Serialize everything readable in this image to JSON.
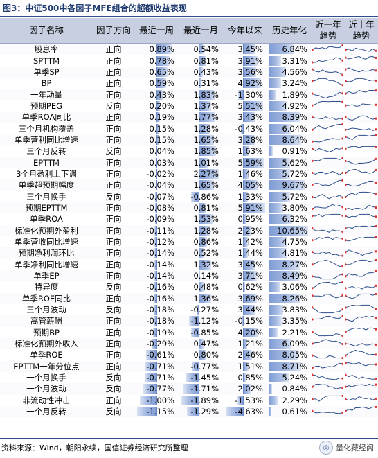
{
  "title": "图3：中证500中各因子MFE组合的超额收益表现",
  "headers": {
    "name": "因子名称",
    "direction": "因子方向",
    "week": "最近一周",
    "month": "最近一月",
    "ytd": "今年以来",
    "annual": "历史年化",
    "trend1y": "近一年\n趋势",
    "trend10y": "近十年\n趋势"
  },
  "rows": [
    {
      "name": "股息率",
      "dir": "正向",
      "week": "0.89%",
      "month": "0.54%",
      "ytd": "3.45%",
      "annual": "6.84%"
    },
    {
      "name": "SPTTM",
      "dir": "正向",
      "week": "0.78%",
      "month": "0.81%",
      "ytd": "3.91%",
      "annual": "3.31%"
    },
    {
      "name": "单季SP",
      "dir": "正向",
      "week": "0.65%",
      "month": "0.43%",
      "ytd": "3.56%",
      "annual": "4.56%"
    },
    {
      "name": "BP",
      "dir": "正向",
      "week": "0.59%",
      "month": "0.31%",
      "ytd": "4.92%",
      "annual": "3.24%"
    },
    {
      "name": "一年动量",
      "dir": "正向",
      "week": "0.43%",
      "month": "1.83%",
      "ytd": "-1.30%",
      "annual": "1.89%"
    },
    {
      "name": "预期PEG",
      "dir": "反向",
      "week": "0.20%",
      "month": "1.37%",
      "ytd": "5.51%",
      "annual": "4.92%"
    },
    {
      "name": "单季ROA同比",
      "dir": "正向",
      "week": "0.19%",
      "month": "1.77%",
      "ytd": "3.43%",
      "annual": "8.39%"
    },
    {
      "name": "三个月机构覆盖",
      "dir": "正向",
      "week": "0.15%",
      "month": "1.28%",
      "ytd": "-0.43%",
      "annual": "6.04%"
    },
    {
      "name": "单季营利同比增速",
      "dir": "正向",
      "week": "0.15%",
      "month": "1.65%",
      "ytd": "3.28%",
      "annual": "8.64%"
    },
    {
      "name": "三个月反转",
      "dir": "反向",
      "week": "0.04%",
      "month": "1.85%",
      "ytd": "1.63%",
      "annual": "0.91%"
    },
    {
      "name": "EPTTM",
      "dir": "正向",
      "week": "0.03%",
      "month": "1.01%",
      "ytd": "5.59%",
      "annual": "5.62%"
    },
    {
      "name": "3个月盈利上下调",
      "dir": "正向",
      "week": "-0.02%",
      "month": "2.27%",
      "ytd": "1.46%",
      "annual": "5.72%"
    },
    {
      "name": "单季超预期幅度",
      "dir": "正向",
      "week": "-0.04%",
      "month": "1.65%",
      "ytd": "4.05%",
      "annual": "9.67%"
    },
    {
      "name": "三个月换手",
      "dir": "反向",
      "week": "-0.07%",
      "month": "-0.86%",
      "ytd": "1.33%",
      "annual": "5.72%"
    },
    {
      "name": "预期EPTTM",
      "dir": "正向",
      "week": "-0.08%",
      "month": "0.81%",
      "ytd": "5.91%",
      "annual": "3.80%"
    },
    {
      "name": "单季ROA",
      "dir": "正向",
      "week": "-0.09%",
      "month": "1.53%",
      "ytd": "0.95%",
      "annual": "6.32%"
    },
    {
      "name": "标准化预期外盈利",
      "dir": "正向",
      "week": "-0.11%",
      "month": "1.28%",
      "ytd": "2.23%",
      "annual": "10.65%"
    },
    {
      "name": "单季营收同比增速",
      "dir": "正向",
      "week": "-0.12%",
      "month": "0.86%",
      "ytd": "1.42%",
      "annual": "4.75%"
    },
    {
      "name": "预期净利润环比",
      "dir": "正向",
      "week": "-0.14%",
      "month": "0.52%",
      "ytd": "1.44%",
      "annual": "4.81%"
    },
    {
      "name": "单季净利同比增速",
      "dir": "正向",
      "week": "-0.14%",
      "month": "1.32%",
      "ytd": "3.45%",
      "annual": "8.27%"
    },
    {
      "name": "单季EP",
      "dir": "正向",
      "week": "-0.14%",
      "month": "0.14%",
      "ytd": "3.71%",
      "annual": "8.49%"
    },
    {
      "name": "特异度",
      "dir": "反向",
      "week": "-0.16%",
      "month": "0.48%",
      "ytd": "0.62%",
      "annual": "3.06%"
    },
    {
      "name": "单季ROE同比",
      "dir": "正向",
      "week": "-0.16%",
      "month": "1.36%",
      "ytd": "3.69%",
      "annual": "8.26%"
    },
    {
      "name": "三个月波动",
      "dir": "反向",
      "week": "-0.18%",
      "month": "-0.27%",
      "ytd": "3.44%",
      "annual": "3.83%"
    },
    {
      "name": "高管薪酬",
      "dir": "正向",
      "week": "-0.18%",
      "month": "-1.12%",
      "ytd": "-0.15%",
      "annual": "3.35%"
    },
    {
      "name": "预期BP",
      "dir": "正向",
      "week": "-0.19%",
      "month": "-0.85%",
      "ytd": "4.20%",
      "annual": "2.21%"
    },
    {
      "name": "标准化预期外收入",
      "dir": "正向",
      "week": "-0.29%",
      "month": "0.47%",
      "ytd": "1.21%",
      "annual": "6.09%"
    },
    {
      "name": "单季ROE",
      "dir": "正向",
      "week": "-0.61%",
      "month": "0.80%",
      "ytd": "2.46%",
      "annual": "8.05%"
    },
    {
      "name": "EPTTM一年分位点",
      "dir": "正向",
      "week": "-0.71%",
      "month": "-0.77%",
      "ytd": "1.51%",
      "annual": "8.71%"
    },
    {
      "name": "一个月换手",
      "dir": "反向",
      "week": "-0.71%",
      "month": "-1.45%",
      "ytd": "0.85%",
      "annual": "5.24%"
    },
    {
      "name": "一个月波动",
      "dir": "反向",
      "week": "-0.77%",
      "month": "-1.71%",
      "ytd": "2.02%",
      "annual": "0.84%"
    },
    {
      "name": "非流动性冲击",
      "dir": "正向",
      "week": "-1.00%",
      "month": "-1.89%",
      "ytd": "-1.53%",
      "annual": "2.29%"
    },
    {
      "name": "一个月反转",
      "dir": "反向",
      "week": "-1.15%",
      "month": "-1.29%",
      "ytd": "-4.63%",
      "annual": "0.61%"
    }
  ],
  "source": "资料来源：Wind，朝阳永续，国信证券经济研究所整理",
  "watermark": "量化藏经阁",
  "colors": {
    "header_bg": "#c7cfe0",
    "bar": "#7f9cd4",
    "title": "#1f3b70",
    "spark_line": "#2e4f8c",
    "spark_marker": "#e03030"
  }
}
